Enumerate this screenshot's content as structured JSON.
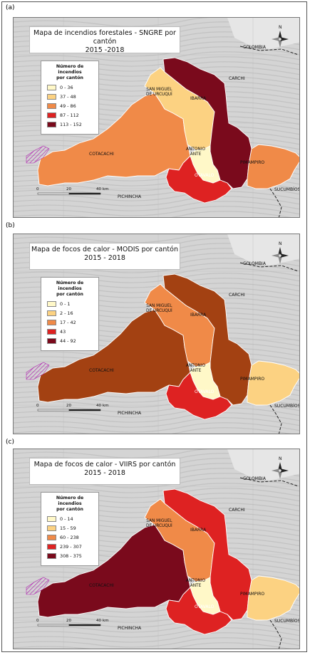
{
  "colors": {
    "c1": "#fff8c8",
    "c2": "#fcd282",
    "c3": "#f08a48",
    "c4": "#de2222",
    "c5": "#7a0a1c",
    "background_relief": "#d9d9d9"
  },
  "panels": [
    {
      "letter": "(a)",
      "title_line1": "Mapa de incendios forestales - SNGRE por cantón",
      "title_line2": "2015 -2018",
      "legend_title_line1": "Número de incendios",
      "legend_title_line2": "por cantón",
      "legend": [
        {
          "label": "0 - 36",
          "color": "#fff8c8"
        },
        {
          "label": "37 - 48",
          "color": "#fcd282"
        },
        {
          "label": "49 - 86",
          "color": "#f08a48"
        },
        {
          "label": "87 - 112",
          "color": "#de2222"
        },
        {
          "label": "113 - 152",
          "color": "#7a0a1c"
        }
      ],
      "cantons": {
        "cotacachi": "#f08a48",
        "san_miguel": "#fcd282",
        "ibarra": "#7a0a1c",
        "antonio_ante": "#fff8c8",
        "otavalo": "#de2222",
        "pimampiro": "#f08a48"
      }
    },
    {
      "letter": "(b)",
      "title_line1": "Mapa de focos de calor - MODIS por cantón",
      "title_line2": "2015 - 2018",
      "legend_title_line1": "Número de incendios",
      "legend_title_line2": "por cantón",
      "legend": [
        {
          "label": "0 - 1",
          "color": "#fff8c8"
        },
        {
          "label": "2 - 16",
          "color": "#fcd282"
        },
        {
          "label": "17 - 42",
          "color": "#f08a48"
        },
        {
          "label": "43",
          "color": "#de2222"
        },
        {
          "label": "44 - 92",
          "color": "#7a0a1c"
        }
      ],
      "cantons": {
        "cotacachi": "#a34112",
        "san_miguel": "#f08a48",
        "ibarra": "#a34112",
        "antonio_ante": "#fff8c8",
        "otavalo": "#de2222",
        "pimampiro": "#fcd282"
      }
    },
    {
      "letter": "(c)",
      "title_line1": "Mapa de focos de calor - VIIRS por cantón",
      "title_line2": "2015 - 2018",
      "legend_title_line1": "Número de incendios",
      "legend_title_line2": "por cantón",
      "legend": [
        {
          "label": "0 - 14",
          "color": "#fff8c8"
        },
        {
          "label": "15 - 59",
          "color": "#fcd282"
        },
        {
          "label": "60 - 238",
          "color": "#f08a48"
        },
        {
          "label": "239 - 307",
          "color": "#de2222"
        },
        {
          "label": "308 - 375",
          "color": "#7a0a1c"
        }
      ],
      "cantons": {
        "cotacachi": "#7a0a1c",
        "san_miguel": "#f08a48",
        "ibarra": "#de2222",
        "antonio_ante": "#fff8c8",
        "otavalo": "#de2222",
        "pimampiro": "#fcd282"
      }
    }
  ],
  "labels": {
    "colombia": "COLOMBIA",
    "carchi": "CARCHI",
    "san_miguel_line1": "SAN MIGUEL",
    "san_miguel_line2": "DE URCUQUÍ",
    "ibarra": "IBARRA",
    "cotacachi": "COTACACHI",
    "antonio_line1": "ANTONIO",
    "antonio_line2": "ANTE",
    "pimampiro": "PIMAMPIRO",
    "otavalo": "OTAVALO",
    "pichincha": "PICHINCHA",
    "sucumbios": "SUCUMBÍOS",
    "north": "N"
  },
  "scale": {
    "zero": "0",
    "mid": "20",
    "end": "40 km"
  }
}
